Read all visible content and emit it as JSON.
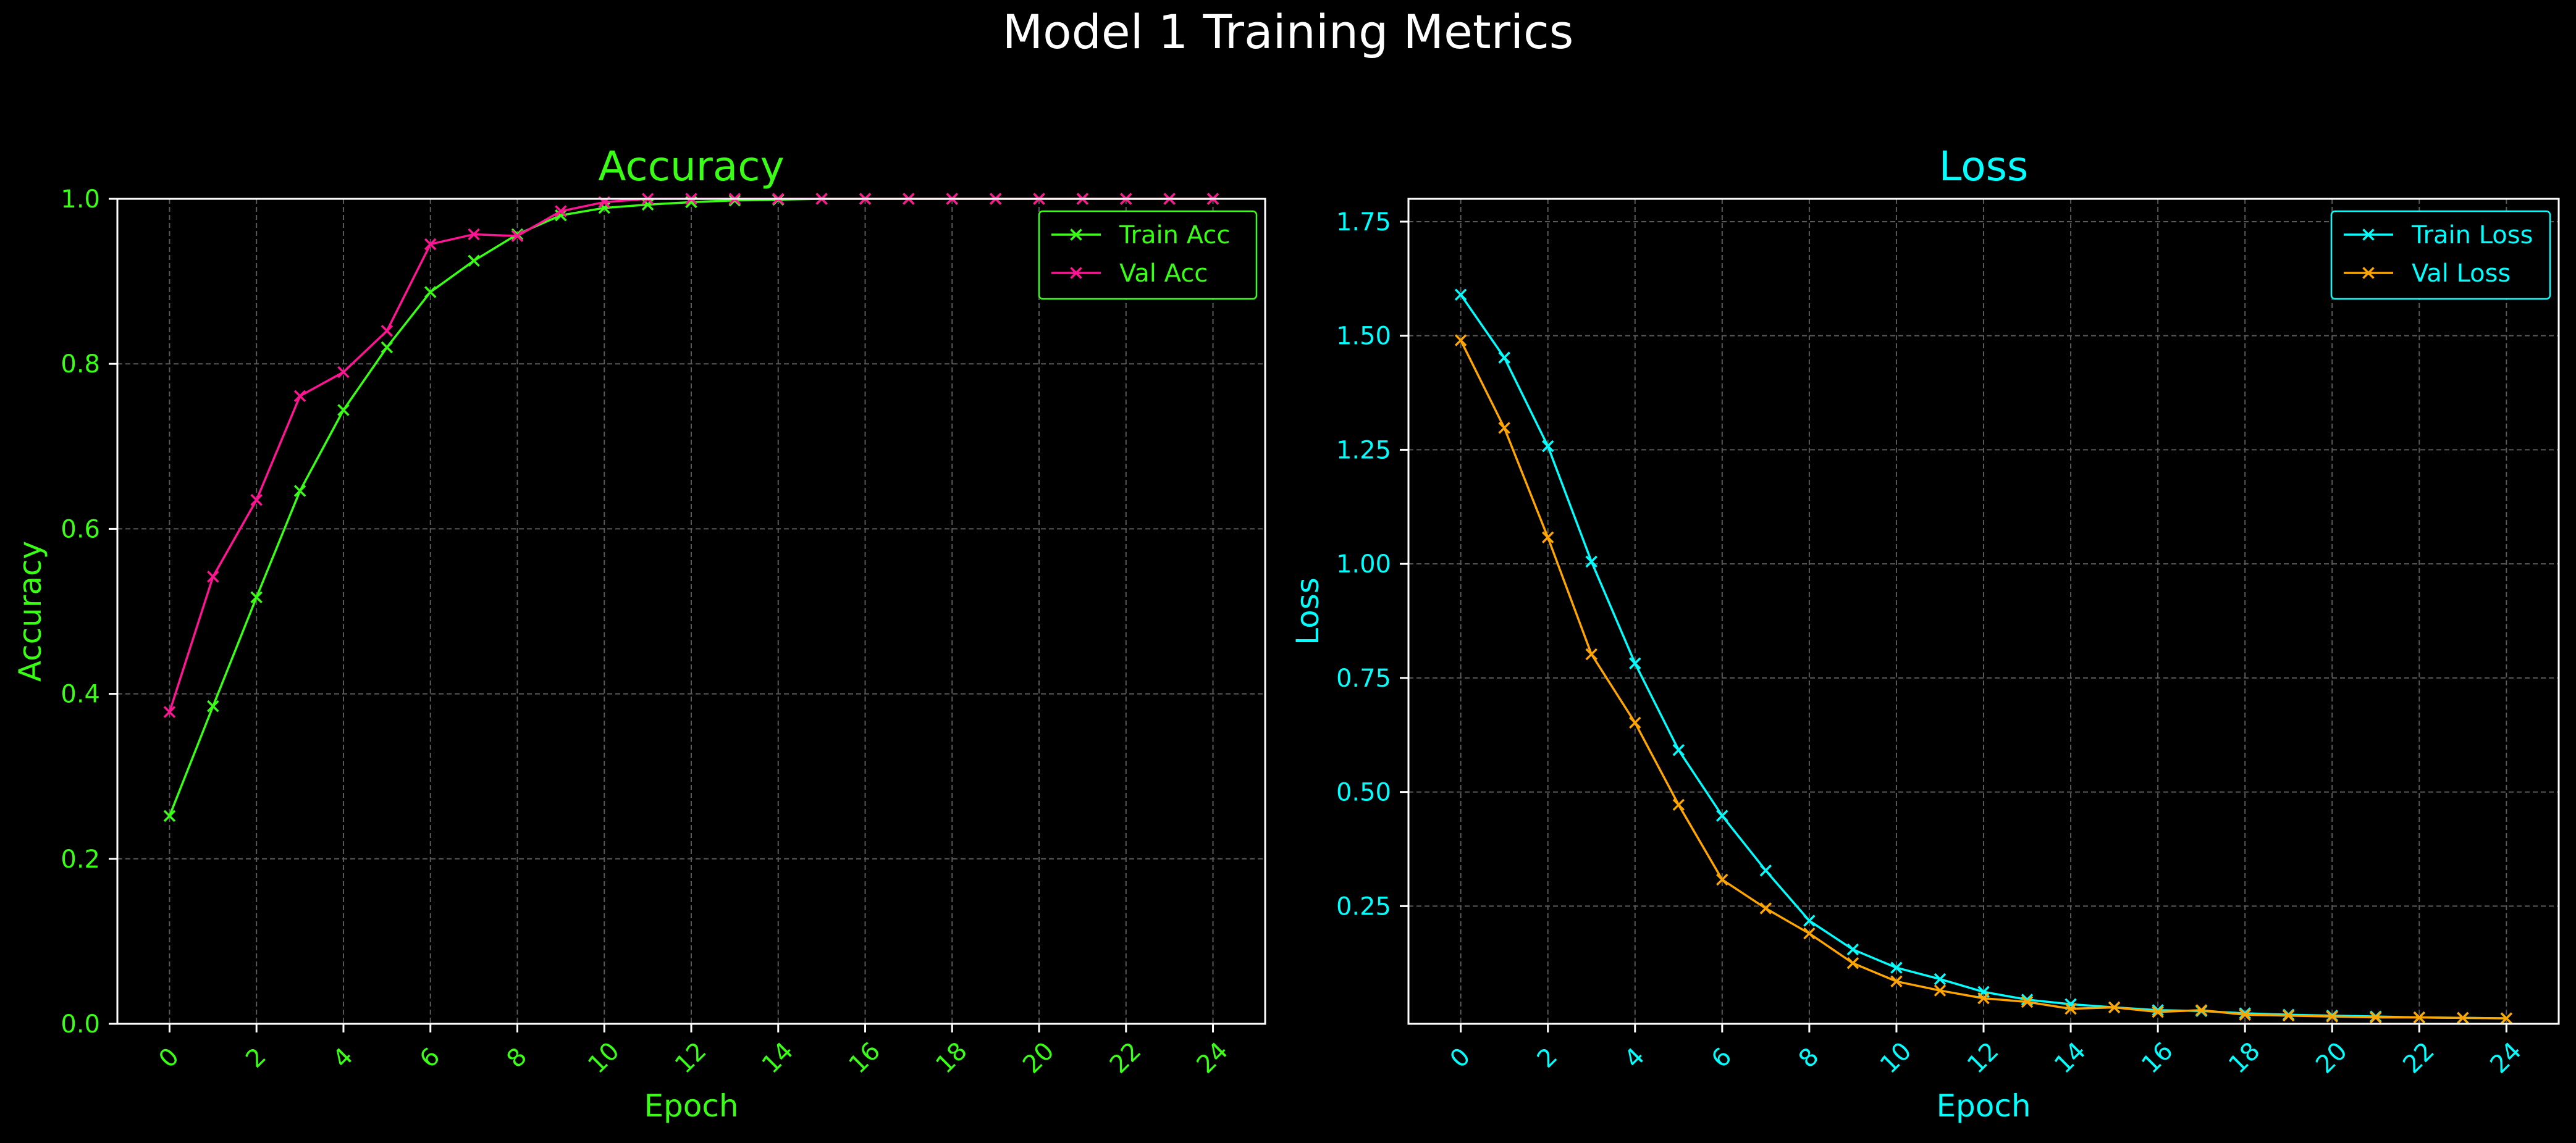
{
  "figure": {
    "title": "Model 1 Training Metrics",
    "background": "#000000",
    "text_color": "#ffffff"
  },
  "chart_data": [
    {
      "type": "line",
      "title": "Accuracy",
      "xlabel": "Epoch",
      "ylabel": "Accuracy",
      "accent": "#39ff14",
      "xlim": [
        -1.2,
        25.2
      ],
      "ylim": [
        0,
        1.0
      ],
      "xticks": [
        0,
        2,
        4,
        6,
        8,
        10,
        12,
        14,
        16,
        18,
        20,
        22,
        24
      ],
      "xtick_labels": [
        "0",
        "2",
        "4",
        "6",
        "8",
        "10",
        "12",
        "14",
        "16",
        "18",
        "20",
        "22",
        "24"
      ],
      "yticks": [
        0,
        0.2,
        0.4,
        0.6,
        0.8,
        1.0
      ],
      "ytick_labels": [
        "0.0",
        "0.2",
        "0.4",
        "0.6",
        "0.8",
        "1.0"
      ],
      "grid": true,
      "legend_position": "top-right",
      "marker": "x",
      "x": [
        0,
        1,
        2,
        3,
        4,
        5,
        6,
        7,
        8,
        9,
        10,
        11,
        12,
        13,
        14,
        15,
        16,
        17,
        18,
        19,
        20,
        21,
        22,
        23,
        24
      ],
      "series": [
        {
          "name": "Train Acc",
          "color": "#39ff14",
          "values": [
            0.252,
            0.385,
            0.517,
            0.646,
            0.744,
            0.82,
            0.887,
            0.925,
            0.957,
            0.98,
            0.989,
            0.993,
            0.996,
            0.998,
            0.999,
            1.0,
            1.0,
            1.0,
            1.0,
            1.0,
            1.0,
            1.0,
            1.0,
            1.0,
            1.0
          ]
        },
        {
          "name": "Val Acc",
          "color": "#ff1493",
          "values": [
            0.378,
            0.542,
            0.635,
            0.761,
            0.79,
            0.84,
            0.945,
            0.957,
            0.955,
            0.985,
            0.996,
            1.0,
            1.0,
            1.0,
            1.0,
            1.0,
            1.0,
            1.0,
            1.0,
            1.0,
            1.0,
            1.0,
            1.0,
            1.0,
            1.0
          ]
        }
      ]
    },
    {
      "type": "line",
      "title": "Loss",
      "xlabel": "Epoch",
      "ylabel": "Loss",
      "accent": "#00ffff",
      "xlim": [
        -1.2,
        25.2
      ],
      "ylim": [
        -0.008,
        1.8
      ],
      "xticks": [
        0,
        2,
        4,
        6,
        8,
        10,
        12,
        14,
        16,
        18,
        20,
        22,
        24
      ],
      "xtick_labels": [
        "0",
        "2",
        "4",
        "6",
        "8",
        "10",
        "12",
        "14",
        "16",
        "18",
        "20",
        "22",
        "24"
      ],
      "yticks": [
        0.25,
        0.5,
        0.75,
        1.0,
        1.25,
        1.5,
        1.75
      ],
      "ytick_labels": [
        "0.25",
        "0.50",
        "0.75",
        "1.00",
        "1.25",
        "1.50",
        "1.75"
      ],
      "grid": true,
      "legend_position": "top-right",
      "marker": "x",
      "x": [
        0,
        1,
        2,
        3,
        4,
        5,
        6,
        7,
        8,
        9,
        10,
        11,
        12,
        13,
        14,
        15,
        16,
        17,
        18,
        19,
        20,
        21,
        22,
        23,
        24
      ],
      "series": [
        {
          "name": "Train Loss",
          "color": "#00ffff",
          "values": [
            1.59,
            1.452,
            1.258,
            1.005,
            0.782,
            0.592,
            0.448,
            0.328,
            0.218,
            0.155,
            0.115,
            0.09,
            0.062,
            0.045,
            0.035,
            0.028,
            0.022,
            0.02,
            0.015,
            0.012,
            0.01,
            0.008,
            0.006,
            0.005,
            0.004
          ]
        },
        {
          "name": "Val Loss",
          "color": "#ffa500",
          "values": [
            1.49,
            1.298,
            1.058,
            0.802,
            0.652,
            0.472,
            0.308,
            0.245,
            0.19,
            0.125,
            0.085,
            0.065,
            0.048,
            0.04,
            0.025,
            0.028,
            0.018,
            0.022,
            0.012,
            0.01,
            0.008,
            0.006,
            0.006,
            0.005,
            0.004
          ]
        }
      ]
    }
  ]
}
